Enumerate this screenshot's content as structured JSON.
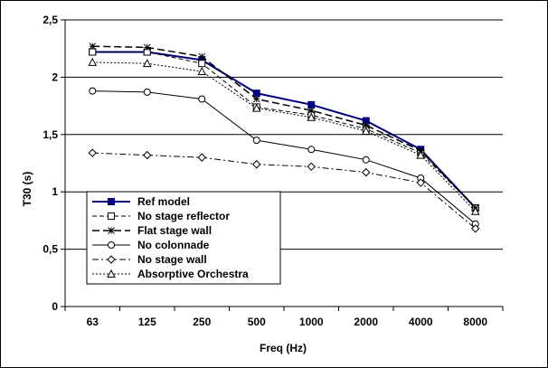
{
  "chart_data": {
    "type": "line",
    "title": "",
    "xlabel": "Freq (Hz)",
    "ylabel": "T30 (s)",
    "categories": [
      "63",
      "125",
      "250",
      "500",
      "1000",
      "2000",
      "4000",
      "8000"
    ],
    "ylim": [
      0,
      2.5
    ],
    "yticks": [
      "0",
      "0,5",
      "1",
      "1,5",
      "2",
      "2,5"
    ],
    "grid": "horizontal major",
    "legend_position": "bottom-left",
    "series": [
      {
        "name": "Ref model",
        "values": [
          2.22,
          2.22,
          2.15,
          1.86,
          1.76,
          1.62,
          1.37,
          0.86
        ],
        "color": "#000080",
        "marker": "filled-square",
        "dash": "solid"
      },
      {
        "name": "No stage reflector",
        "values": [
          2.22,
          2.22,
          2.12,
          1.74,
          1.67,
          1.55,
          1.34,
          0.86
        ],
        "color": "#000000",
        "marker": "open-square",
        "dash": "dashed"
      },
      {
        "name": "Flat stage wall",
        "values": [
          2.27,
          2.26,
          2.18,
          1.81,
          1.71,
          1.58,
          1.36,
          0.86
        ],
        "color": "#000000",
        "marker": "asterisk",
        "dash": "long-dash"
      },
      {
        "name": "No colonnade",
        "values": [
          1.88,
          1.87,
          1.81,
          1.45,
          1.37,
          1.28,
          1.12,
          0.72
        ],
        "color": "#000000",
        "marker": "open-circle",
        "dash": "solid-thin"
      },
      {
        "name": "No stage wall",
        "values": [
          1.34,
          1.32,
          1.3,
          1.24,
          1.22,
          1.17,
          1.08,
          0.68
        ],
        "color": "#000000",
        "marker": "open-diamond",
        "dash": "dash-dot"
      },
      {
        "name": "Absorptive Orchestra",
        "values": [
          2.13,
          2.12,
          2.05,
          1.73,
          1.65,
          1.53,
          1.32,
          0.83
        ],
        "color": "#000000",
        "marker": "open-triangle",
        "dash": "dotted"
      }
    ]
  }
}
